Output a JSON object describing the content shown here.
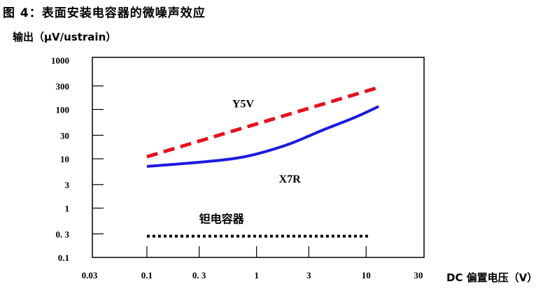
{
  "figure_title": "图 4：表面安装电容器的微噪声效应",
  "chart_data": {
    "type": "line",
    "ylabel": "输出（μV/ustrain）",
    "xlabel": "DC 偏置电压（V）",
    "x_scale": "log",
    "y_scale": "log",
    "xlim": [
      0.03,
      30
    ],
    "ylim": [
      0.1,
      1000
    ],
    "x_ticks": [
      {
        "value": 0.03,
        "label": "0.03"
      },
      {
        "value": 0.1,
        "label": "0.1"
      },
      {
        "value": 0.3,
        "label": "0. 3"
      },
      {
        "value": 1,
        "label": "1"
      },
      {
        "value": 3,
        "label": "3"
      },
      {
        "value": 10,
        "label": "10"
      },
      {
        "value": 30,
        "label": "30"
      }
    ],
    "y_ticks": [
      {
        "value": 0.1,
        "label": "0.1"
      },
      {
        "value": 0.3,
        "label": "0. 3"
      },
      {
        "value": 1,
        "label": "1"
      },
      {
        "value": 3,
        "label": "3"
      },
      {
        "value": 10,
        "label": "10"
      },
      {
        "value": 30,
        "label": "30"
      },
      {
        "value": 100,
        "label": "100"
      },
      {
        "value": 300,
        "label": "300"
      },
      {
        "value": 1000,
        "label": "1000"
      }
    ],
    "grid": false,
    "series": [
      {
        "name": "Y5V",
        "color": "#e8101a",
        "style": "dashed",
        "points": [
          [
            0.1,
            11
          ],
          [
            13,
            280
          ]
        ]
      },
      {
        "name": "X7R",
        "color": "#1a1ae0",
        "style": "solid",
        "points": [
          [
            0.1,
            7
          ],
          [
            0.3,
            8.5
          ],
          [
            0.6,
            10
          ],
          [
            1,
            12.5
          ],
          [
            2,
            20
          ],
          [
            4,
            38
          ],
          [
            8,
            70
          ],
          [
            13,
            115
          ]
        ]
      },
      {
        "name": "钽电容器",
        "color": "#000000",
        "style": "dotted",
        "points": [
          [
            0.1,
            0.27
          ],
          [
            11,
            0.27
          ]
        ]
      }
    ],
    "annotations": [
      {
        "text": "Y5V",
        "x": 0.6,
        "y": 110
      },
      {
        "text": "X7R",
        "x": 1.6,
        "y": 3.3
      },
      {
        "text": "钽电容器",
        "x": 0.3,
        "y": 0.5
      }
    ]
  }
}
